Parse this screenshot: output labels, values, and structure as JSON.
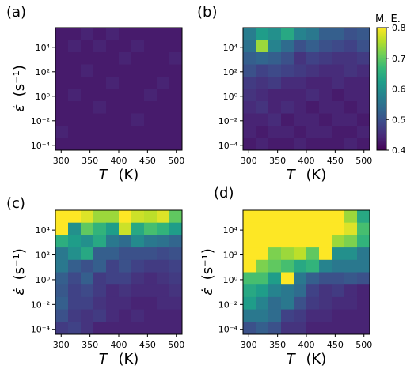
{
  "colorbar": {
    "label": "M. E.",
    "vmin": 0.4,
    "vmax": 0.8,
    "ticks": [
      "0.4",
      "0.5",
      "0.6",
      "0.7",
      "0.8"
    ],
    "colormap": "viridis",
    "stops": [
      "#440154",
      "#482878",
      "#3e4989",
      "#31688e",
      "#26828e",
      "#1f9e89",
      "#35b779",
      "#6ece58",
      "#b5de2b",
      "#fde725"
    ]
  },
  "chart_data": [
    {
      "type": "heatmap",
      "panel_label": "(a)",
      "xlabel_var": "T",
      "xlabel_unit": "(K)",
      "ylabel_var": "ε̇",
      "ylabel_unit": "(s⁻¹)",
      "x_tick_labels": [
        "300",
        "350",
        "400",
        "450",
        "500"
      ],
      "y_tick_labels": [
        "10⁴",
        "10²",
        "10⁰",
        "10⁻²",
        "10⁻⁴"
      ],
      "x_tick_values": [
        300,
        350,
        400,
        450,
        500
      ],
      "x_range": [
        290,
        510
      ],
      "n_rows": 10,
      "n_cols": 10,
      "values": [
        [
          0.43,
          0.43,
          0.44,
          0.43,
          0.44,
          0.43,
          0.43,
          0.43,
          0.43,
          0.43
        ],
        [
          0.43,
          0.44,
          0.43,
          0.44,
          0.43,
          0.43,
          0.44,
          0.43,
          0.43,
          0.43
        ],
        [
          0.43,
          0.43,
          0.43,
          0.43,
          0.43,
          0.44,
          0.43,
          0.43,
          0.43,
          0.44
        ],
        [
          0.43,
          0.43,
          0.44,
          0.43,
          0.43,
          0.43,
          0.43,
          0.43,
          0.43,
          0.43
        ],
        [
          0.43,
          0.43,
          0.43,
          0.43,
          0.44,
          0.43,
          0.43,
          0.43,
          0.44,
          0.43
        ],
        [
          0.43,
          0.44,
          0.43,
          0.43,
          0.43,
          0.43,
          0.43,
          0.44,
          0.43,
          0.43
        ],
        [
          0.43,
          0.43,
          0.43,
          0.44,
          0.43,
          0.43,
          0.43,
          0.43,
          0.43,
          0.43
        ],
        [
          0.43,
          0.43,
          0.43,
          0.43,
          0.43,
          0.43,
          0.44,
          0.43,
          0.43,
          0.43
        ],
        [
          0.44,
          0.43,
          0.43,
          0.43,
          0.43,
          0.43,
          0.43,
          0.43,
          0.43,
          0.43
        ],
        [
          0.43,
          0.43,
          0.43,
          0.43,
          0.43,
          0.43,
          0.43,
          0.43,
          0.43,
          0.43
        ]
      ]
    },
    {
      "type": "heatmap",
      "panel_label": "(b)",
      "xlabel_var": "T",
      "xlabel_unit": "(K)",
      "ylabel_var": "",
      "ylabel_unit": "",
      "x_tick_labels": [
        "300",
        "350",
        "400",
        "450",
        "500"
      ],
      "y_tick_labels": [
        "10⁴",
        "10²",
        "10⁰",
        "10⁻²",
        "10⁻⁴"
      ],
      "x_tick_values": [
        300,
        350,
        400,
        450,
        500
      ],
      "x_range": [
        290,
        510
      ],
      "n_rows": 10,
      "n_cols": 10,
      "values": [
        [
          0.57,
          0.62,
          0.6,
          0.64,
          0.58,
          0.56,
          0.52,
          0.52,
          0.5,
          0.51
        ],
        [
          0.55,
          0.74,
          0.58,
          0.54,
          0.5,
          0.52,
          0.5,
          0.49,
          0.48,
          0.5
        ],
        [
          0.52,
          0.53,
          0.52,
          0.5,
          0.46,
          0.48,
          0.47,
          0.46,
          0.46,
          0.47
        ],
        [
          0.5,
          0.48,
          0.49,
          0.48,
          0.47,
          0.46,
          0.45,
          0.45,
          0.46,
          0.45
        ],
        [
          0.47,
          0.46,
          0.47,
          0.45,
          0.45,
          0.44,
          0.44,
          0.45,
          0.44,
          0.44
        ],
        [
          0.46,
          0.45,
          0.44,
          0.44,
          0.44,
          0.45,
          0.44,
          0.43,
          0.44,
          0.44
        ],
        [
          0.45,
          0.46,
          0.44,
          0.45,
          0.44,
          0.43,
          0.44,
          0.44,
          0.43,
          0.44
        ],
        [
          0.44,
          0.44,
          0.45,
          0.43,
          0.44,
          0.44,
          0.43,
          0.44,
          0.44,
          0.43
        ],
        [
          0.44,
          0.43,
          0.44,
          0.44,
          0.43,
          0.44,
          0.44,
          0.43,
          0.43,
          0.44
        ],
        [
          0.43,
          0.44,
          0.43,
          0.43,
          0.44,
          0.43,
          0.43,
          0.43,
          0.44,
          0.43
        ]
      ]
    },
    {
      "type": "heatmap",
      "panel_label": "(c)",
      "xlabel_var": "T",
      "xlabel_unit": "(K)",
      "ylabel_var": "ε̇",
      "ylabel_unit": "(s⁻¹)",
      "x_tick_labels": [
        "300",
        "350",
        "400",
        "450",
        "500"
      ],
      "y_tick_labels": [
        "10⁴",
        "10²",
        "10⁰",
        "10⁻²",
        "10⁻⁴"
      ],
      "x_tick_values": [
        300,
        350,
        400,
        450,
        500
      ],
      "x_range": [
        290,
        510
      ],
      "n_rows": 10,
      "n_cols": 10,
      "values": [
        [
          0.8,
          0.8,
          0.78,
          0.74,
          0.74,
          0.8,
          0.77,
          0.76,
          0.78,
          0.7
        ],
        [
          0.8,
          0.6,
          0.7,
          0.66,
          0.62,
          0.77,
          0.64,
          0.68,
          0.66,
          0.62
        ],
        [
          0.65,
          0.62,
          0.6,
          0.64,
          0.56,
          0.54,
          0.59,
          0.56,
          0.55,
          0.53
        ],
        [
          0.56,
          0.6,
          0.64,
          0.52,
          0.52,
          0.5,
          0.5,
          0.5,
          0.49,
          0.5
        ],
        [
          0.56,
          0.52,
          0.5,
          0.52,
          0.48,
          0.5,
          0.48,
          0.47,
          0.47,
          0.48
        ],
        [
          0.52,
          0.49,
          0.52,
          0.47,
          0.48,
          0.48,
          0.46,
          0.45,
          0.46,
          0.47
        ],
        [
          0.51,
          0.48,
          0.49,
          0.47,
          0.45,
          0.46,
          0.45,
          0.45,
          0.45,
          0.46
        ],
        [
          0.52,
          0.48,
          0.48,
          0.46,
          0.45,
          0.45,
          0.44,
          0.44,
          0.45,
          0.45
        ],
        [
          0.5,
          0.47,
          0.46,
          0.47,
          0.45,
          0.44,
          0.45,
          0.44,
          0.44,
          0.44
        ],
        [
          0.47,
          0.48,
          0.46,
          0.44,
          0.44,
          0.44,
          0.44,
          0.44,
          0.44,
          0.44
        ]
      ]
    },
    {
      "type": "heatmap",
      "panel_label": "(d)",
      "xlabel_var": "T",
      "xlabel_unit": "(K)",
      "ylabel_var": "ε̇",
      "ylabel_unit": "(s⁻¹)",
      "x_tick_labels": [
        "300",
        "350",
        "400",
        "450",
        "500"
      ],
      "y_tick_labels": [
        "10⁴",
        "10²",
        "10⁰",
        "10⁻²",
        "10⁻⁴"
      ],
      "x_tick_values": [
        300,
        350,
        400,
        450,
        500
      ],
      "x_range": [
        290,
        510
      ],
      "n_rows": 10,
      "n_cols": 10,
      "values": [
        [
          0.8,
          0.8,
          0.8,
          0.8,
          0.8,
          0.8,
          0.8,
          0.8,
          0.74,
          0.64
        ],
        [
          0.8,
          0.8,
          0.8,
          0.8,
          0.8,
          0.8,
          0.8,
          0.8,
          0.78,
          0.68
        ],
        [
          0.8,
          0.8,
          0.8,
          0.8,
          0.8,
          0.8,
          0.8,
          0.74,
          0.72,
          0.66
        ],
        [
          0.8,
          0.8,
          0.72,
          0.74,
          0.76,
          0.7,
          0.8,
          0.6,
          0.6,
          0.56
        ],
        [
          0.8,
          0.72,
          0.7,
          0.68,
          0.64,
          0.66,
          0.58,
          0.56,
          0.56,
          0.56
        ],
        [
          0.68,
          0.68,
          0.62,
          0.8,
          0.56,
          0.52,
          0.5,
          0.5,
          0.51,
          0.5
        ],
        [
          0.64,
          0.62,
          0.58,
          0.56,
          0.54,
          0.48,
          0.46,
          0.47,
          0.45,
          0.44
        ],
        [
          0.62,
          0.58,
          0.54,
          0.56,
          0.5,
          0.47,
          0.46,
          0.45,
          0.45,
          0.44
        ],
        [
          0.56,
          0.56,
          0.54,
          0.48,
          0.47,
          0.45,
          0.45,
          0.44,
          0.44,
          0.44
        ],
        [
          0.5,
          0.52,
          0.5,
          0.46,
          0.46,
          0.44,
          0.44,
          0.44,
          0.44,
          0.44
        ]
      ]
    }
  ]
}
